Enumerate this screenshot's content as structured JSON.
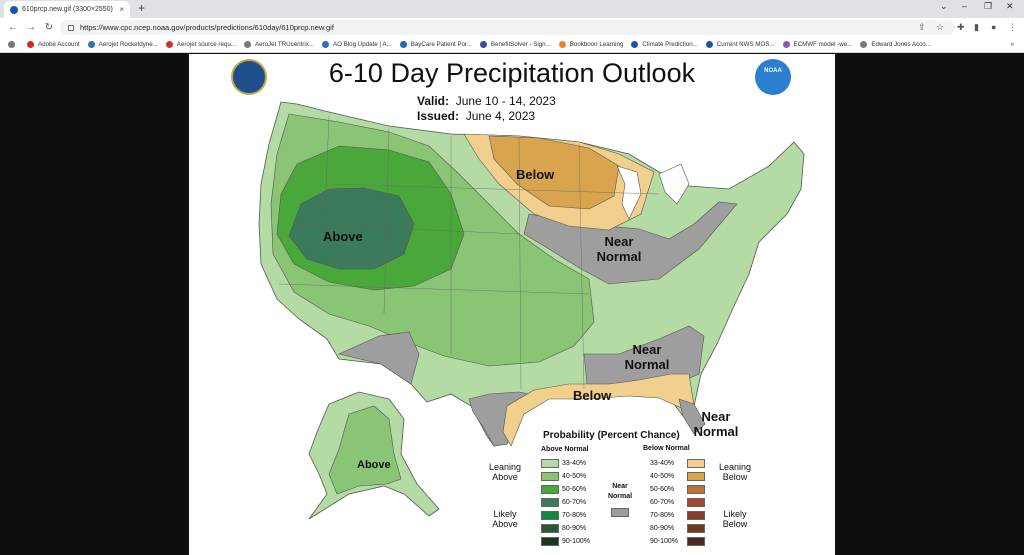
{
  "browser": {
    "tab_title": "610prcp.new.gif (3300×2550)",
    "tab_close": "×",
    "new_tab": "+",
    "url": "https://www.cpc.ncep.noaa.gov/products/predictions/610day/610prcp.new.gif",
    "bookmarks": [
      "Adobe Account",
      "Aerojet Rocketdyne...",
      "Aerojet source requ...",
      "AeroJet TRUcentrix...",
      "AO Blog Update | A...",
      "BayCare Patient Por...",
      "BenefitSolver - Sign...",
      "Bookboon Learning",
      "Climate Prediction...",
      "Current NWS MOS...",
      "ECMWF model -we...",
      "Edward Jones Acco..."
    ],
    "more": "»"
  },
  "map": {
    "title": "6-10 Day Precipitation Outlook",
    "valid_label": "Valid:",
    "valid_value": "June 10 - 14, 2023",
    "issued_label": "Issued:",
    "issued_value": "June 4, 2023",
    "noaa_logo_text": "NOAA",
    "region_labels": {
      "above_west": "Above",
      "below_north": "Below",
      "near_normal_central": "Near Normal",
      "near_normal_southeast": "Near Normal",
      "below_gulf": "Below",
      "near_normal_florida": "Near Normal",
      "above_alaska": "Above"
    }
  },
  "legend": {
    "title": "Probability (Percent Chance)",
    "above_header": "Above Normal",
    "below_header": "Below Normal",
    "near_normal": "Near Normal",
    "leaning_above": "Leaning Above",
    "likely_above": "Likely Above",
    "leaning_below": "Leaning Below",
    "likely_below": "Likely Below",
    "above_rows": [
      {
        "label": "33-40%",
        "color": "#b3dba3"
      },
      {
        "label": "40-50%",
        "color": "#8ac475"
      },
      {
        "label": "50-60%",
        "color": "#4aa83b"
      },
      {
        "label": "60-70%",
        "color": "#3b7a5a"
      },
      {
        "label": "70-80%",
        "color": "#0f8a3c"
      },
      {
        "label": "80-90%",
        "color": "#235a34"
      },
      {
        "label": "90-100%",
        "color": "#17381d"
      }
    ],
    "below_rows": [
      {
        "label": "33-40%",
        "color": "#f0d08c"
      },
      {
        "label": "40-50%",
        "color": "#d8a44e"
      },
      {
        "label": "50-60%",
        "color": "#bb7338"
      },
      {
        "label": "60-70%",
        "color": "#a2492e"
      },
      {
        "label": "70-80%",
        "color": "#8a3a2a"
      },
      {
        "label": "80-90%",
        "color": "#6b3a1c"
      },
      {
        "label": "90-100%",
        "color": "#4a2a1e"
      }
    ],
    "near_color": "#9e9e9e"
  }
}
